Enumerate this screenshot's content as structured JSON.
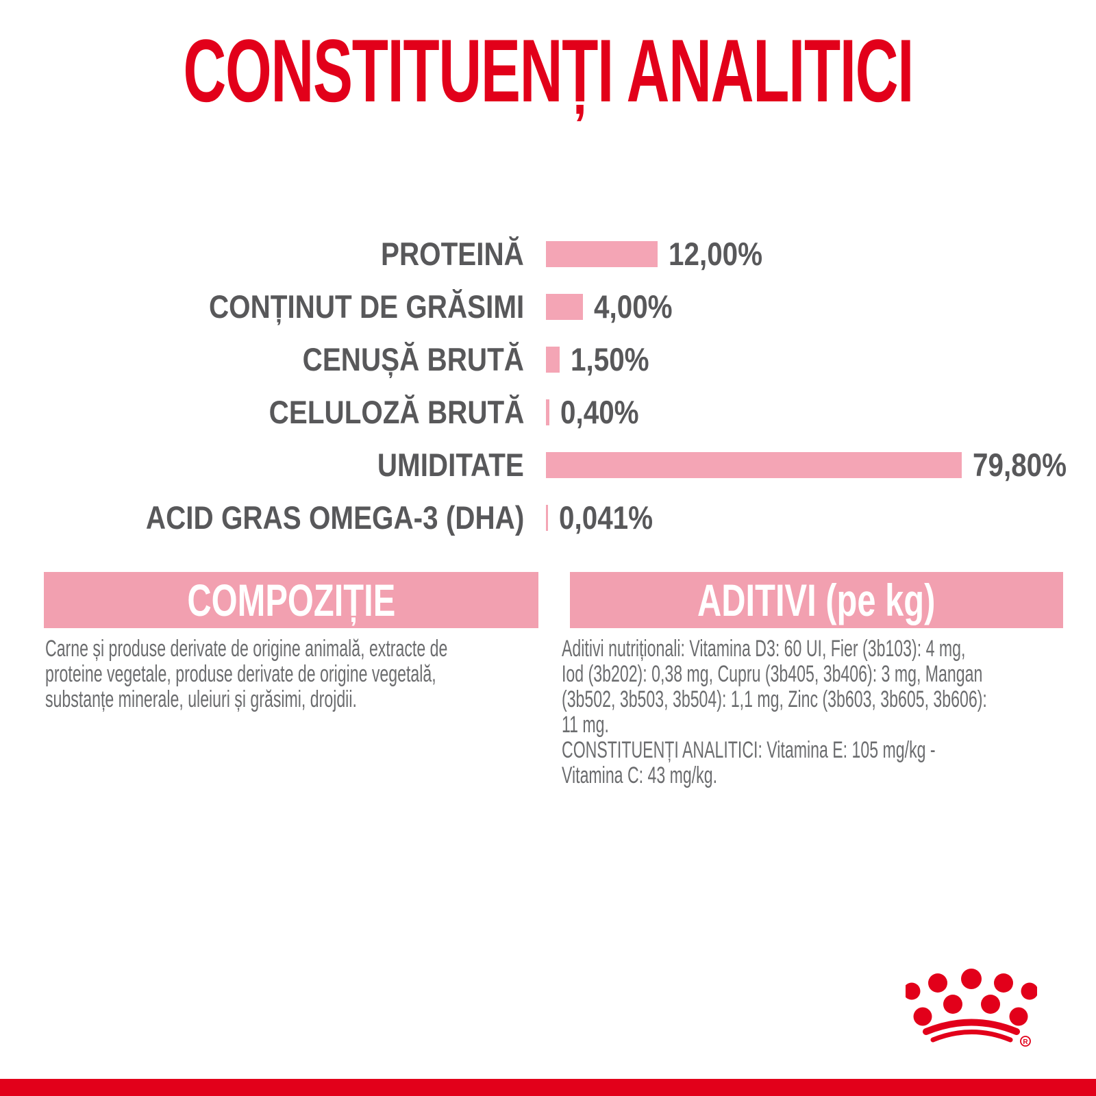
{
  "colors": {
    "brand_red": "#e2001a",
    "bar_pink": "#f4a5b5",
    "band_pink": "#f2a0b0",
    "label_gray": "#58585a",
    "body_gray": "#6b6c6e",
    "white": "#ffffff"
  },
  "title": "CONSTITUENȚI ANALITICI",
  "chart_data": {
    "type": "bar",
    "orientation": "horizontal",
    "title": "CONSTITUENȚI ANALITICI",
    "categories": [
      "PROTEINĂ",
      "CONȚINUT DE GRĂSIMI",
      "CENUȘĂ BRUTĂ",
      "CELULOZĂ BRUTĂ",
      "UMIDITATE",
      "ACID GRAS OMEGA-3 (DHA)"
    ],
    "values": [
      12.0,
      4.0,
      1.5,
      0.4,
      79.8,
      0.041
    ],
    "value_labels": [
      "12,00%",
      "4,00%",
      "1,50%",
      "0,40%",
      "79,80%",
      "0,041%"
    ],
    "unit": "%",
    "xlim": [
      0,
      80
    ],
    "grid": false,
    "legend": false,
    "bar_color": "#f4a5b5",
    "value_label_position": "right-of-bar"
  },
  "sections": {
    "composition": {
      "header": "COMPOZIȚIE",
      "lines": [
        "Carne și produse derivate de origine animală, extracte de",
        "proteine vegetale, produse derivate de origine vegetală,",
        "substanțe minerale, uleiuri și grăsimi, drojdii."
      ]
    },
    "additives": {
      "header": "ADITIVI (pe kg)",
      "lines": [
        "Aditivi nutriționali: Vitamina D3: 60 UI, Fier (3b103): 4 mg,",
        "Iod (3b202): 0,38 mg, Cupru (3b405, 3b406): 3 mg, Mangan",
        "(3b502, 3b503, 3b504): 1,1 mg, Zinc (3b603, 3b605, 3b606):",
        "11 mg.",
        "CONSTITUENȚI ANALITICI: Vitamina E: 105 mg/kg -",
        "Vitamina C: 43 mg/kg."
      ]
    }
  },
  "footer": {
    "registered_mark": "R"
  }
}
